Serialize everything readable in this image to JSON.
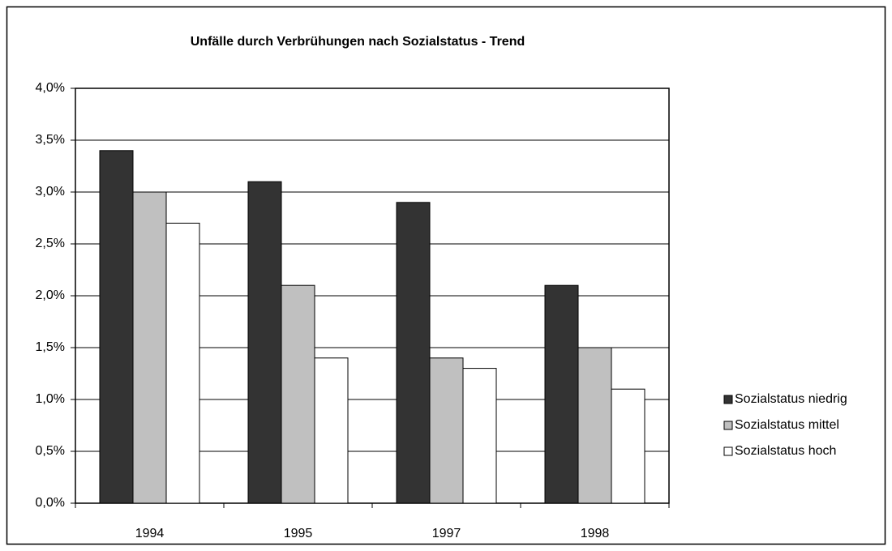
{
  "chart_data": {
    "type": "bar",
    "title": "Unfälle durch Verbrühungen nach Sozialstatus - Trend",
    "categories": [
      "1994",
      "1995",
      "1997",
      "1998"
    ],
    "series": [
      {
        "name": "Sozialstatus niedrig",
        "color": "#333333",
        "values": [
          3.4,
          3.1,
          2.9,
          2.1
        ]
      },
      {
        "name": "Sozialstatus mittel",
        "color": "#c0c0c0",
        "values": [
          3.0,
          2.1,
          1.4,
          1.5
        ]
      },
      {
        "name": "Sozialstatus hoch",
        "color": "#ffffff",
        "values": [
          2.7,
          1.4,
          1.3,
          1.1
        ]
      }
    ],
    "ylim": [
      0,
      4
    ],
    "yticks": [
      {
        "value": 0,
        "label": "0,0%"
      },
      {
        "value": 0.5,
        "label": "0,5%"
      },
      {
        "value": 1,
        "label": "1,0%"
      },
      {
        "value": 1.5,
        "label": "1,5%"
      },
      {
        "value": 2,
        "label": "2,0%"
      },
      {
        "value": 2.5,
        "label": "2,5%"
      },
      {
        "value": 3,
        "label": "3,0%"
      },
      {
        "value": 3.5,
        "label": "3,5%"
      },
      {
        "value": 4,
        "label": "4,0%"
      }
    ],
    "grid": true,
    "legend": "right"
  }
}
